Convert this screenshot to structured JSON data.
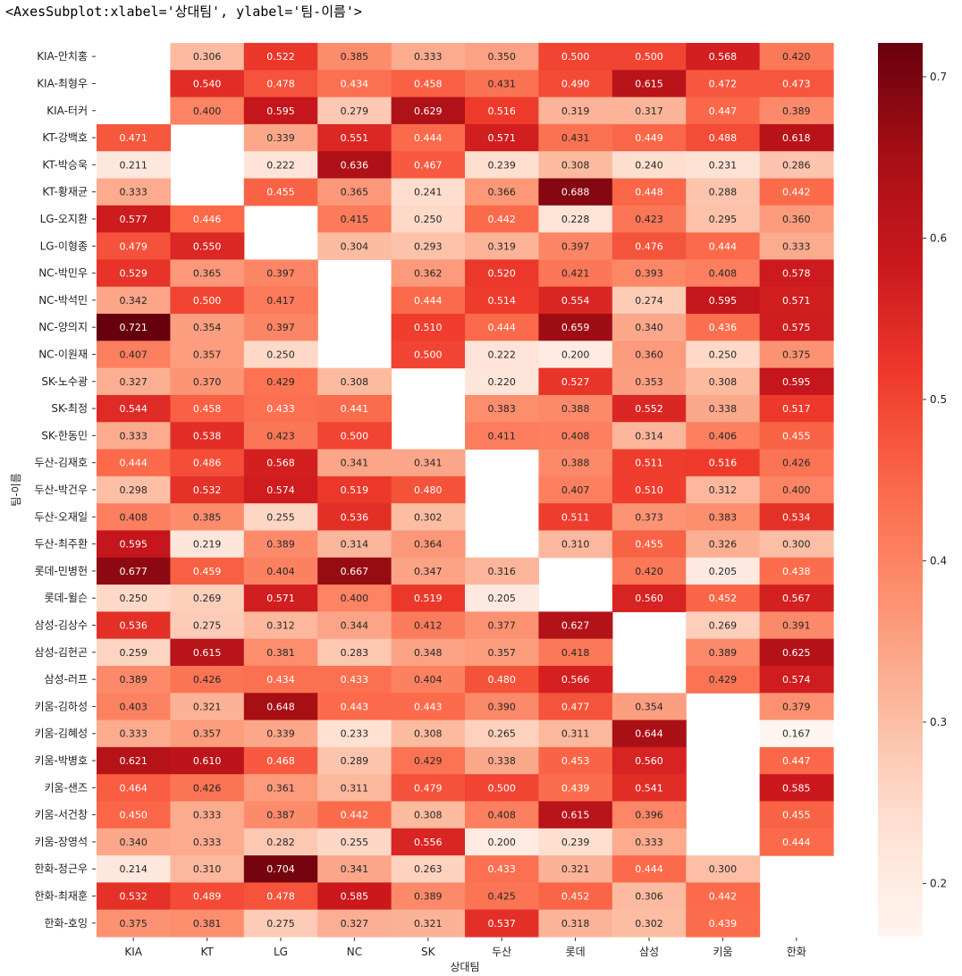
{
  "output_header": "<AxesSubplot:xlabel='상대팀', ylabel='팀-이름'>",
  "chart_data": {
    "type": "heatmap",
    "xlabel": "상대팀",
    "ylabel": "팀-이름",
    "columns": [
      "KIA",
      "KT",
      "LG",
      "NC",
      "SK",
      "두산",
      "롯데",
      "삼성",
      "키움",
      "한화"
    ],
    "rows": [
      "KIA-안치홍",
      "KIA-최형우",
      "KIA-터커",
      "KT-강백호",
      "KT-박승욱",
      "KT-황재균",
      "LG-오지환",
      "LG-이형종",
      "NC-박민우",
      "NC-박석민",
      "NC-양의지",
      "NC-이원재",
      "SK-노수광",
      "SK-최정",
      "SK-한동민",
      "두산-김재호",
      "두산-박건우",
      "두산-오재일",
      "두산-최주환",
      "롯데-민병헌",
      "롯데-윌슨",
      "삼성-김상수",
      "삼성-김헌곤",
      "삼성-러프",
      "키움-김하성",
      "키움-김혜성",
      "키움-박병호",
      "키움-샌즈",
      "키움-서건창",
      "키움-장영석",
      "한화-정근우",
      "한화-최재훈",
      "한화-호잉"
    ],
    "values": [
      [
        null,
        0.306,
        0.522,
        0.385,
        0.333,
        0.35,
        0.5,
        0.5,
        0.568,
        0.42
      ],
      [
        null,
        0.54,
        0.478,
        0.434,
        0.458,
        0.431,
        0.49,
        0.615,
        0.472,
        0.473
      ],
      [
        null,
        0.4,
        0.595,
        0.279,
        0.629,
        0.516,
        0.319,
        0.317,
        0.447,
        0.389
      ],
      [
        0.471,
        null,
        0.339,
        0.551,
        0.444,
        0.571,
        0.431,
        0.449,
        0.488,
        0.618
      ],
      [
        0.211,
        null,
        0.222,
        0.636,
        0.467,
        0.239,
        0.308,
        0.24,
        0.231,
        0.286
      ],
      [
        0.333,
        null,
        0.455,
        0.365,
        0.241,
        0.366,
        0.688,
        0.448,
        0.288,
        0.442
      ],
      [
        0.577,
        0.446,
        null,
        0.415,
        0.25,
        0.442,
        0.228,
        0.423,
        0.295,
        0.36
      ],
      [
        0.479,
        0.55,
        null,
        0.304,
        0.293,
        0.319,
        0.397,
        0.476,
        0.444,
        0.333
      ],
      [
        0.529,
        0.365,
        0.397,
        null,
        0.362,
        0.52,
        0.421,
        0.393,
        0.408,
        0.578
      ],
      [
        0.342,
        0.5,
        0.417,
        null,
        0.444,
        0.514,
        0.554,
        0.274,
        0.595,
        0.571
      ],
      [
        0.721,
        0.354,
        0.397,
        null,
        0.51,
        0.444,
        0.659,
        0.34,
        0.436,
        0.575
      ],
      [
        0.407,
        0.357,
        0.25,
        null,
        0.5,
        0.222,
        0.2,
        0.36,
        0.25,
        0.375
      ],
      [
        0.327,
        0.37,
        0.429,
        0.308,
        null,
        0.22,
        0.527,
        0.353,
        0.308,
        0.595
      ],
      [
        0.544,
        0.458,
        0.433,
        0.441,
        null,
        0.383,
        0.388,
        0.552,
        0.338,
        0.517
      ],
      [
        0.333,
        0.538,
        0.423,
        0.5,
        null,
        0.411,
        0.408,
        0.314,
        0.406,
        0.455
      ],
      [
        0.444,
        0.486,
        0.568,
        0.341,
        0.341,
        null,
        0.388,
        0.511,
        0.516,
        0.426
      ],
      [
        0.298,
        0.532,
        0.574,
        0.519,
        0.48,
        null,
        0.407,
        0.51,
        0.312,
        0.4
      ],
      [
        0.408,
        0.385,
        0.255,
        0.536,
        0.302,
        null,
        0.511,
        0.373,
        0.383,
        0.534
      ],
      [
        0.595,
        0.219,
        0.389,
        0.314,
        0.364,
        null,
        0.31,
        0.455,
        0.326,
        0.3
      ],
      [
        0.677,
        0.459,
        0.404,
        0.667,
        0.347,
        0.316,
        null,
        0.42,
        0.205,
        0.438
      ],
      [
        0.25,
        0.269,
        0.571,
        0.4,
        0.519,
        0.205,
        null,
        0.56,
        0.452,
        0.567
      ],
      [
        0.536,
        0.275,
        0.312,
        0.344,
        0.412,
        0.377,
        0.627,
        null,
        0.269,
        0.391
      ],
      [
        0.259,
        0.615,
        0.381,
        0.283,
        0.348,
        0.357,
        0.418,
        null,
        0.389,
        0.625
      ],
      [
        0.389,
        0.426,
        0.434,
        0.433,
        0.404,
        0.48,
        0.566,
        null,
        0.429,
        0.574
      ],
      [
        0.403,
        0.321,
        0.648,
        0.443,
        0.443,
        0.39,
        0.477,
        0.354,
        null,
        0.379
      ],
      [
        0.333,
        0.357,
        0.339,
        0.233,
        0.308,
        0.265,
        0.311,
        0.644,
        null,
        0.167
      ],
      [
        0.621,
        0.61,
        0.468,
        0.289,
        0.429,
        0.338,
        0.453,
        0.56,
        null,
        0.447
      ],
      [
        0.464,
        0.426,
        0.361,
        0.311,
        0.479,
        0.5,
        0.439,
        0.541,
        null,
        0.585
      ],
      [
        0.45,
        0.333,
        0.387,
        0.442,
        0.308,
        0.408,
        0.615,
        0.396,
        null,
        0.455
      ],
      [
        0.34,
        0.333,
        0.282,
        0.255,
        0.556,
        0.2,
        0.239,
        0.333,
        null,
        0.444
      ],
      [
        0.214,
        0.31,
        0.704,
        0.341,
        0.263,
        0.433,
        0.321,
        0.444,
        0.3,
        null
      ],
      [
        0.532,
        0.489,
        0.478,
        0.585,
        0.389,
        0.425,
        0.452,
        0.306,
        0.442,
        null
      ],
      [
        0.375,
        0.381,
        0.275,
        0.327,
        0.321,
        0.537,
        0.318,
        0.302,
        0.439,
        null
      ]
    ],
    "colormap": "Reds",
    "vmin": 0.167,
    "vmax": 0.721,
    "colorbar_ticks": [
      0.2,
      0.3,
      0.4,
      0.5,
      0.6,
      0.7
    ]
  }
}
